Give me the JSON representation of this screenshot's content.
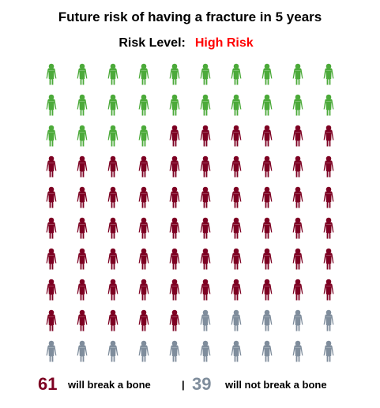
{
  "title": "Future risk of having a fracture in 5 years",
  "risk_label": "Risk Level:",
  "risk_value": "High Risk",
  "colors": {
    "safe_before": "#4caa3a",
    "break": "#7d0022",
    "safe_after": "#7f8d9c",
    "risk_value": "#ff0000"
  },
  "chart_data": {
    "type": "pictograph",
    "icon": "person-icon",
    "total": 100,
    "columns": 10,
    "rows": 10,
    "segments": [
      {
        "category": "green",
        "count": 24
      },
      {
        "category": "will break a bone",
        "count": 61
      },
      {
        "category": "will not break a bone",
        "count": 15
      }
    ]
  },
  "summary": {
    "break_count": "61",
    "break_label": "will break a bone",
    "separator": "|",
    "safe_count": "39",
    "safe_label": "will not break a bone"
  }
}
